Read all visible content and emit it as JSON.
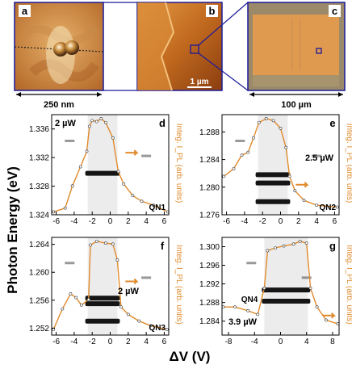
{
  "top_images": [
    {
      "letter": "a",
      "scale_text": "250 nm"
    },
    {
      "letter": "b",
      "scale_text": "1 µm"
    },
    {
      "letter": "c",
      "scale_text": "100 µm"
    }
  ],
  "y_axis_label": "Photon Energy (eV)",
  "x_axis_label": "ΔV (V)",
  "right_axis_label": "Integ. I_PL (arb. units)",
  "colors": {
    "trace": "#e08a2c",
    "box": "#1a1a9a",
    "fill_rect": "#1a1a9a"
  },
  "panels": [
    {
      "letter": "d",
      "dot": "QN1",
      "power": "2 µW",
      "x_ticks": [
        "-6",
        "-4",
        "-2",
        "0",
        "2",
        "4",
        "6"
      ],
      "x_range": [
        -6.5,
        6.5
      ],
      "y_ticks": [
        "1.324",
        "1.328",
        "1.332",
        "1.336"
      ],
      "y_range": [
        1.324,
        1.338
      ],
      "lines": [
        1.3298
      ],
      "trace": [
        [
          -6.3,
          0.03
        ],
        [
          -5,
          0.07
        ],
        [
          -4.2,
          0.3
        ],
        [
          -3.3,
          0.5
        ],
        [
          -2.6,
          0.66
        ],
        [
          -2.3,
          0.92
        ],
        [
          -2,
          0.98
        ],
        [
          -1.5,
          0.97
        ],
        [
          -1,
          1.0
        ],
        [
          -0.5,
          0.96
        ],
        [
          0.3,
          0.8
        ],
        [
          0.9,
          0.45
        ],
        [
          1.5,
          0.32
        ],
        [
          2.5,
          0.2
        ],
        [
          3.5,
          0.14
        ],
        [
          4.8,
          0.1
        ],
        [
          6.4,
          0.03
        ]
      ]
    },
    {
      "letter": "e",
      "dot": "QN2",
      "power": "2.5 µW",
      "x_ticks": [
        "-6",
        "-4",
        "-2",
        "0",
        "2",
        "4",
        "6"
      ],
      "x_range": [
        -6.5,
        6.5
      ],
      "y_ticks": [
        "1.276",
        "1.280",
        "1.284",
        "1.288"
      ],
      "y_range": [
        1.276,
        1.2905
      ],
      "lines": [
        1.2818,
        1.2806,
        1.2779
      ],
      "trace": [
        [
          -6.3,
          0.4
        ],
        [
          -5.2,
          0.48
        ],
        [
          -4.3,
          0.62
        ],
        [
          -3.6,
          0.65
        ],
        [
          -3,
          0.8
        ],
        [
          -2.4,
          0.96
        ],
        [
          -1.6,
          1.0
        ],
        [
          -0.8,
          0.98
        ],
        [
          0,
          0.9
        ],
        [
          0.6,
          0.7
        ],
        [
          1,
          0.4
        ],
        [
          1.6,
          0.25
        ],
        [
          2.6,
          0.15
        ],
        [
          4,
          0.1
        ],
        [
          6.3,
          0.08
        ]
      ]
    },
    {
      "letter": "f",
      "dot": "QN3",
      "power": "2 µW",
      "x_ticks": [
        "-6",
        "-4",
        "-2",
        "0",
        "2",
        "4",
        "6"
      ],
      "x_range": [
        -6.5,
        6.5
      ],
      "y_ticks": [
        "1.252",
        "1.256",
        "1.260",
        "1.264"
      ],
      "y_range": [
        1.251,
        1.265
      ],
      "lines": [
        1.2563,
        1.2555,
        1.253
      ],
      "trace": [
        [
          -6.3,
          0.06
        ],
        [
          -5.3,
          0.28
        ],
        [
          -4.4,
          0.44
        ],
        [
          -3.8,
          0.4
        ],
        [
          -3.2,
          0.32
        ],
        [
          -2.4,
          0.38
        ],
        [
          -2.2,
          0.96
        ],
        [
          -1.5,
          1.0
        ],
        [
          -0.5,
          0.98
        ],
        [
          0.3,
          0.97
        ],
        [
          0.8,
          0.8
        ],
        [
          1.2,
          0.3
        ],
        [
          2,
          0.22
        ],
        [
          3.2,
          0.15
        ],
        [
          4.5,
          0.1
        ],
        [
          6.3,
          0.06
        ]
      ]
    },
    {
      "letter": "g",
      "dot": "QN4",
      "power": "3.9 µW",
      "x_ticks": [
        "-8",
        "-4",
        "0",
        "4",
        "8"
      ],
      "x_range": [
        -9,
        9
      ],
      "y_ticks": [
        "1.284",
        "1.288",
        "1.292",
        "1.296",
        "1.300"
      ],
      "y_range": [
        1.281,
        1.302
      ],
      "lines": [
        1.2907,
        1.2883
      ],
      "trace": [
        [
          -8.8,
          0.3
        ],
        [
          -7,
          0.3
        ],
        [
          -5,
          0.26
        ],
        [
          -3.5,
          0.22
        ],
        [
          -2.5,
          0.5
        ],
        [
          -2,
          0.9
        ],
        [
          -0.8,
          0.93
        ],
        [
          0.5,
          0.95
        ],
        [
          2,
          0.97
        ],
        [
          3,
          1.0
        ],
        [
          4,
          0.98
        ],
        [
          4.6,
          0.5
        ],
        [
          5.6,
          0.3
        ],
        [
          7,
          0.16
        ],
        [
          8.8,
          0.12
        ]
      ]
    }
  ]
}
